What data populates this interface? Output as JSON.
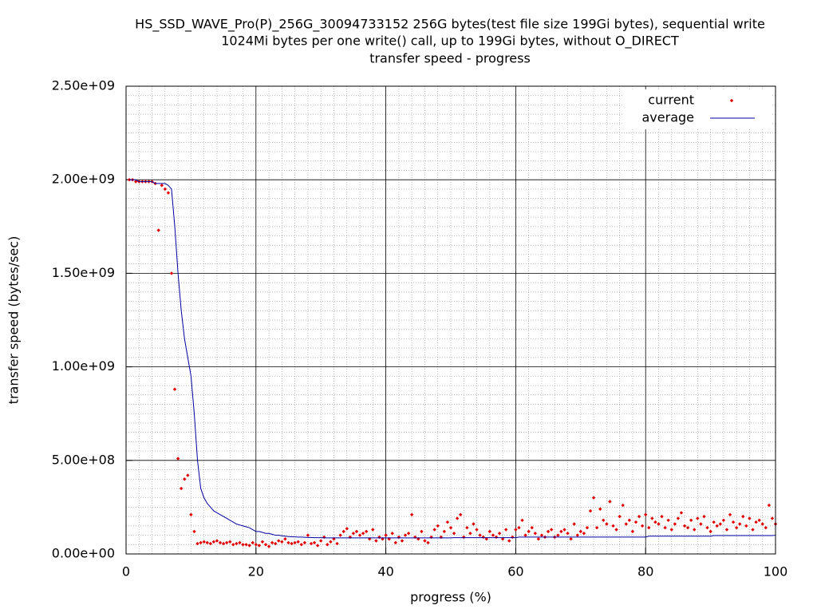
{
  "chart_data": {
    "type": "scatter-line",
    "title": [
      "HS_SSD_WAVE_Pro(P)_256G_30094733152 256G bytes(test file size 199Gi bytes), sequential write",
      "1024Mi bytes per one write() call, up to 199Gi bytes, without O_DIRECT",
      "transfer speed - progress"
    ],
    "xlabel": "progress (%)",
    "ylabel": "transfer speed (bytes/sec)",
    "xlim": [
      0,
      100
    ],
    "xticks": [
      0,
      20,
      40,
      60,
      80,
      100
    ],
    "ylim": [
      0,
      2500000000.0
    ],
    "yticks": [
      {
        "value": 0,
        "label": "0.00e+00"
      },
      {
        "value": 500000000.0,
        "label": "5.00e+08"
      },
      {
        "value": 1000000000.0,
        "label": "1.00e+09"
      },
      {
        "value": 1500000000.0,
        "label": "1.50e+09"
      },
      {
        "value": 2000000000.0,
        "label": "2.00e+09"
      },
      {
        "value": 2500000000.0,
        "label": "2.50e+09"
      }
    ],
    "grid": true,
    "legend": "upper right",
    "x": [
      0.5,
      1,
      1.5,
      2,
      2.5,
      3,
      3.5,
      4,
      4.5,
      5,
      5.5,
      6,
      6.5,
      7,
      7.5,
      8,
      8.5,
      9,
      9.5,
      10,
      10.5,
      11,
      11.5,
      12,
      12.5,
      13,
      13.5,
      14,
      14.5,
      15,
      15.5,
      16,
      16.5,
      17,
      17.5,
      18,
      18.5,
      19,
      19.5,
      20,
      20.5,
      21,
      21.5,
      22,
      22.5,
      23,
      23.5,
      24,
      24.5,
      25,
      25.5,
      26,
      26.5,
      27,
      27.5,
      28,
      28.5,
      29,
      29.5,
      30,
      30.5,
      31,
      31.5,
      32,
      32.5,
      33,
      33.5,
      34,
      34.5,
      35,
      35.5,
      36,
      36.5,
      37,
      37.5,
      38,
      38.5,
      39,
      39.5,
      40,
      40.5,
      41,
      41.5,
      42,
      42.5,
      43,
      43.5,
      44,
      44.5,
      45,
      45.5,
      46,
      46.5,
      47,
      47.5,
      48,
      48.5,
      49,
      49.5,
      50,
      50.5,
      51,
      51.5,
      52,
      52.5,
      53,
      53.5,
      54,
      54.5,
      55,
      55.5,
      56,
      56.5,
      57,
      57.5,
      58,
      58.5,
      59,
      59.5,
      60,
      60.5,
      61,
      61.5,
      62,
      62.5,
      63,
      63.5,
      64,
      64.5,
      65,
      65.5,
      66,
      66.5,
      67,
      67.5,
      68,
      68.5,
      69,
      69.5,
      70,
      70.5,
      71,
      71.5,
      72,
      72.5,
      73,
      73.5,
      74,
      74.5,
      75,
      75.5,
      76,
      76.5,
      77,
      77.5,
      78,
      78.5,
      79,
      79.5,
      80,
      80.5,
      81,
      81.5,
      82,
      82.5,
      83,
      83.5,
      84,
      84.5,
      85,
      85.5,
      86,
      86.5,
      87,
      87.5,
      88,
      88.5,
      89,
      89.5,
      90,
      90.5,
      91,
      91.5,
      92,
      92.5,
      93,
      93.5,
      94,
      94.5,
      95,
      95.5,
      96,
      96.5,
      97,
      97.5,
      98,
      98.5,
      99,
      99.5,
      100
    ],
    "series": [
      {
        "name": "current",
        "color": "#e00000",
        "style": "points",
        "values": [
          2000000000.0,
          2000000000.0,
          1990000000.0,
          1990000000.0,
          1990000000.0,
          1990000000.0,
          1990000000.0,
          1990000000.0,
          1980000000.0,
          1730000000.0,
          1970000000.0,
          1950000000.0,
          1930000000.0,
          1500000000.0,
          880000000.0,
          510000000.0,
          350000000.0,
          400000000.0,
          420000000.0,
          210000000.0,
          120000000.0,
          55000000.0,
          60000000.0,
          65000000.0,
          60000000.0,
          55000000.0,
          65000000.0,
          70000000.0,
          60000000.0,
          55000000.0,
          60000000.0,
          65000000.0,
          50000000.0,
          55000000.0,
          60000000.0,
          50000000.0,
          50000000.0,
          45000000.0,
          60000000.0,
          50000000.0,
          45000000.0,
          65000000.0,
          50000000.0,
          40000000.0,
          60000000.0,
          55000000.0,
          70000000.0,
          65000000.0,
          80000000.0,
          60000000.0,
          55000000.0,
          60000000.0,
          65000000.0,
          50000000.0,
          60000000.0,
          100000000.0,
          55000000.0,
          60000000.0,
          45000000.0,
          70000000.0,
          90000000.0,
          50000000.0,
          65000000.0,
          80000000.0,
          55000000.0,
          100000000.0,
          120000000.0,
          135000000.0,
          90000000.0,
          110000000.0,
          120000000.0,
          100000000.0,
          110000000.0,
          120000000.0,
          80000000.0,
          130000000.0,
          70000000.0,
          90000000.0,
          80000000.0,
          100000000.0,
          80000000.0,
          110000000.0,
          60000000.0,
          90000000.0,
          70000000.0,
          100000000.0,
          110000000.0,
          210000000.0,
          90000000.0,
          80000000.0,
          120000000.0,
          70000000.0,
          60000000.0,
          90000000.0,
          130000000.0,
          150000000.0,
          90000000.0,
          120000000.0,
          170000000.0,
          140000000.0,
          110000000.0,
          190000000.0,
          210000000.0,
          90000000.0,
          140000000.0,
          110000000.0,
          160000000.0,
          130000000.0,
          100000000.0,
          90000000.0,
          80000000.0,
          120000000.0,
          100000000.0,
          90000000.0,
          110000000.0,
          80000000.0,
          130000000.0,
          70000000.0,
          90000000.0,
          130000000.0,
          140000000.0,
          180000000.0,
          100000000.0,
          120000000.0,
          140000000.0,
          110000000.0,
          80000000.0,
          100000000.0,
          90000000.0,
          120000000.0,
          130000000.0,
          90000000.0,
          100000000.0,
          120000000.0,
          130000000.0,
          110000000.0,
          80000000.0,
          160000000.0,
          100000000.0,
          120000000.0,
          110000000.0,
          140000000.0,
          230000000.0,
          300000000.0,
          140000000.0,
          240000000.0,
          180000000.0,
          160000000.0,
          280000000.0,
          150000000.0,
          130000000.0,
          200000000.0,
          260000000.0,
          160000000.0,
          180000000.0,
          120000000.0,
          170000000.0,
          200000000.0,
          150000000.0,
          210000000.0,
          140000000.0,
          190000000.0,
          170000000.0,
          160000000.0,
          200000000.0,
          140000000.0,
          180000000.0,
          130000000.0,
          160000000.0,
          190000000.0,
          220000000.0,
          150000000.0,
          140000000.0,
          180000000.0,
          130000000.0,
          190000000.0,
          160000000.0,
          200000000.0,
          140000000.0,
          120000000.0,
          170000000.0,
          150000000.0,
          160000000.0,
          180000000.0,
          130000000.0,
          210000000.0,
          170000000.0,
          140000000.0,
          160000000.0,
          200000000.0,
          150000000.0,
          190000000.0,
          130000000.0,
          170000000.0,
          180000000.0,
          160000000.0,
          140000000.0,
          260000000.0,
          190000000.0,
          160000000.0
        ]
      },
      {
        "name": "average",
        "color": "#0000a0",
        "style": "line",
        "values": [
          2000000000.0,
          2000000000.0,
          2000000000.0,
          1990000000.0,
          1990000000.0,
          1990000000.0,
          1990000000.0,
          1990000000.0,
          1980000000.0,
          1980000000.0,
          1980000000.0,
          1980000000.0,
          1970000000.0,
          1950000000.0,
          1750000000.0,
          1500000000.0,
          1300000000.0,
          1150000000.0,
          1050000000.0,
          950000000.0,
          750000000.0,
          500000000.0,
          350000000.0,
          300000000.0,
          270000000.0,
          250000000.0,
          230000000.0,
          220000000.0,
          210000000.0,
          200000000.0,
          190000000.0,
          180000000.0,
          170000000.0,
          160000000.0,
          155000000.0,
          150000000.0,
          145000000.0,
          140000000.0,
          130000000.0,
          120000000.0,
          120000000.0,
          115000000.0,
          110000000.0,
          110000000.0,
          105000000.0,
          100000000.0,
          100000000.0,
          97000000.0,
          95000000.0,
          93000000.0,
          92000000.0,
          91000000.0,
          90000000.0,
          90000000.0,
          89000000.0,
          88000000.0,
          88000000.0,
          87000000.0,
          87000000.0,
          87000000.0,
          86000000.0,
          86000000.0,
          86000000.0,
          86000000.0,
          86000000.0,
          86000000.0,
          86000000.0,
          86000000.0,
          86000000.0,
          86000000.0,
          86000000.0,
          86000000.0,
          86000000.0,
          86000000.0,
          86000000.0,
          86000000.0,
          86000000.0,
          86000000.0,
          86000000.0,
          86000000.0,
          86000000.0,
          86000000.0,
          86000000.0,
          86000000.0,
          86000000.0,
          86000000.0,
          86000000.0,
          86000000.0,
          86000000.0,
          86000000.0,
          86000000.0,
          86000000.0,
          86000000.0,
          86000000.0,
          86000000.0,
          86000000.0,
          86000000.0,
          86000000.0,
          86000000.0,
          86000000.0,
          87000000.0,
          87000000.0,
          87000000.0,
          87000000.0,
          87000000.0,
          87000000.0,
          87000000.0,
          87000000.0,
          87000000.0,
          87000000.0,
          87000000.0,
          87000000.0,
          87000000.0,
          87000000.0,
          87000000.0,
          87000000.0,
          87000000.0,
          87000000.0,
          87000000.0,
          87000000.0,
          90000000.0,
          90000000.0,
          90000000.0,
          90000000.0,
          90000000.0,
          90000000.0,
          90000000.0,
          90000000.0,
          90000000.0,
          90000000.0,
          90000000.0,
          90000000.0,
          90000000.0,
          90000000.0,
          90000000.0,
          90000000.0,
          90000000.0,
          90000000.0,
          90000000.0,
          90000000.0,
          90000000.0,
          90000000.0,
          90000000.0,
          90000000.0,
          90000000.0,
          90000000.0,
          90000000.0,
          90000000.0,
          90000000.0,
          90000000.0,
          90000000.0,
          90000000.0,
          90000000.0,
          90000000.0,
          90000000.0,
          90000000.0,
          90000000.0,
          90000000.0,
          90000000.0,
          90000000.0,
          95000000.0,
          95000000.0,
          95000000.0,
          95000000.0,
          95000000.0,
          95000000.0,
          95000000.0,
          95000000.0,
          95000000.0,
          95000000.0,
          95000000.0,
          95000000.0,
          95000000.0,
          95000000.0,
          95000000.0,
          95000000.0,
          95000000.0,
          95000000.0,
          95000000.0,
          95000000.0,
          98000000.0,
          98000000.0,
          98000000.0,
          98000000.0,
          98000000.0,
          98000000.0,
          98000000.0,
          98000000.0,
          98000000.0,
          98000000.0,
          98000000.0,
          98000000.0,
          98000000.0,
          98000000.0,
          98000000.0,
          98000000.0,
          98000000.0,
          98000000.0,
          98000000.0,
          100000000.0
        ]
      }
    ]
  }
}
